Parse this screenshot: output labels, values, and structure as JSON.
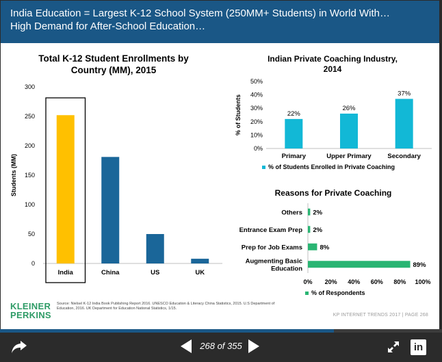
{
  "header": {
    "line1": "India Education = Largest K-12 School System (250MM+ Students) in World With…",
    "line2": "High Demand for After-School Education…"
  },
  "chart_data": [
    {
      "type": "bar",
      "title_lines": [
        "Total K-12 Student Enrollments by",
        "Country (MM), 2015"
      ],
      "ylabel": "Students (MM)",
      "categories": [
        "India",
        "China",
        "US",
        "UK"
      ],
      "values": [
        252,
        181,
        50,
        8
      ],
      "ylim": [
        0,
        300
      ],
      "yticks": [
        0,
        50,
        100,
        150,
        200,
        250,
        300
      ],
      "colors": [
        "#ffc000",
        "#1a6699",
        "#1a6699",
        "#1a6699"
      ],
      "highlight": "India",
      "grid": false
    },
    {
      "type": "bar",
      "title_lines": [
        "Indian Private Coaching Industry,",
        "2014"
      ],
      "ylabel": "% of Students",
      "categories": [
        "Primary",
        "Upper Primary",
        "Secondary"
      ],
      "values": [
        22,
        26,
        37
      ],
      "data_labels": [
        "22%",
        "26%",
        "37%"
      ],
      "ylim": [
        0,
        50
      ],
      "yticks": [
        "0%",
        "10%",
        "20%",
        "30%",
        "40%",
        "50%"
      ],
      "legend": "% of Students Enrolled in Private Coaching",
      "legend_position": "bottom",
      "color": "#12b8d6"
    },
    {
      "type": "bar",
      "orientation": "horizontal",
      "title_lines": [
        "Reasons for Private Coaching"
      ],
      "categories": [
        [
          "Others"
        ],
        [
          "Entrance Exam Prep"
        ],
        [
          "Prep for Job Exams"
        ],
        [
          "Augmenting Basic",
          "Education"
        ]
      ],
      "values": [
        2,
        2,
        8,
        89
      ],
      "data_labels": [
        "2%",
        "2%",
        "8%",
        "89%"
      ],
      "xlim": [
        0,
        100
      ],
      "xticks": [
        "0%",
        "20%",
        "40%",
        "60%",
        "80%",
        "100%"
      ],
      "legend": "% of Respondents",
      "legend_position": "bottom",
      "color": "#2ab573"
    }
  ],
  "footer": {
    "source": "Source: Nielsel K-12 India Book Publishing Report 2016. UNESCO Education & Literacy China Statistics, 2015. U.S Department of Education, 2016. UK Department for Education National Statistics, 1/15.",
    "logo_line1": "KLEINER",
    "logo_line2": "PERKINS",
    "page_info": "KP INTERNET TRENDS 2017  |  PAGE 268"
  },
  "viewer": {
    "current_page": 268,
    "total_pages": 355,
    "page_label": "268 of 355",
    "accent_color": "#1a5786",
    "icons": [
      "share-icon",
      "previous-slide-icon",
      "next-slide-icon",
      "expand-icon",
      "linkedin-icon"
    ]
  }
}
